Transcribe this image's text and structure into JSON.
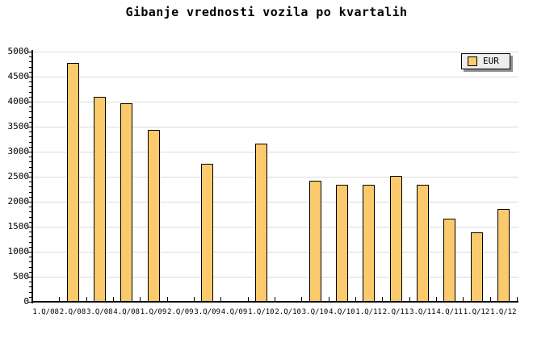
{
  "title": "Gibanje vrednosti vozila po kvartalih",
  "legend": {
    "label": "EUR"
  },
  "colors": {
    "bar_fill": "#FBCA6D",
    "bar_border": "#000000",
    "grid": "#DCDCDC",
    "axis": "#000000",
    "legend_bg": "#EDEDED",
    "legend_shadow": "#909090",
    "background": "#FFFFFF"
  },
  "chart_data": {
    "type": "bar",
    "title": "Gibanje vrednosti vozila po kvartalih",
    "xlabel": "",
    "ylabel": "",
    "categories": [
      "1.Q/08",
      "2.Q/08",
      "3.Q/08",
      "4.Q/08",
      "1.Q/09",
      "2.Q/09",
      "3.Q/09",
      "4.Q/09",
      "1.Q/10",
      "2.Q/10",
      "3.Q/10",
      "4.Q/10",
      "1.Q/11",
      "2.Q/11",
      "3.Q/11",
      "4.Q/11",
      "1.Q/12",
      "1.Q/12"
    ],
    "series": [
      {
        "name": "EUR",
        "values": [
          null,
          4775,
          4095,
          3960,
          3430,
          null,
          2760,
          null,
          3160,
          null,
          2415,
          2340,
          2345,
          2510,
          2345,
          1655,
          1390,
          1855
        ]
      }
    ],
    "missing_categories": [
      "1.Q/08",
      "2.Q/09",
      "4.Q/09",
      "2.Q/10"
    ],
    "ylim": [
      0,
      5000
    ],
    "y_major_step": 500,
    "y_minor_step": 100,
    "y_tick_labels": [
      "0",
      "500",
      "1000",
      "1500",
      "2000",
      "2500",
      "3000",
      "3500",
      "4000",
      "4500",
      "5000"
    ],
    "grid": "horizontal-major",
    "legend_position": "top-right",
    "bar_color": "#FBCA6D"
  }
}
